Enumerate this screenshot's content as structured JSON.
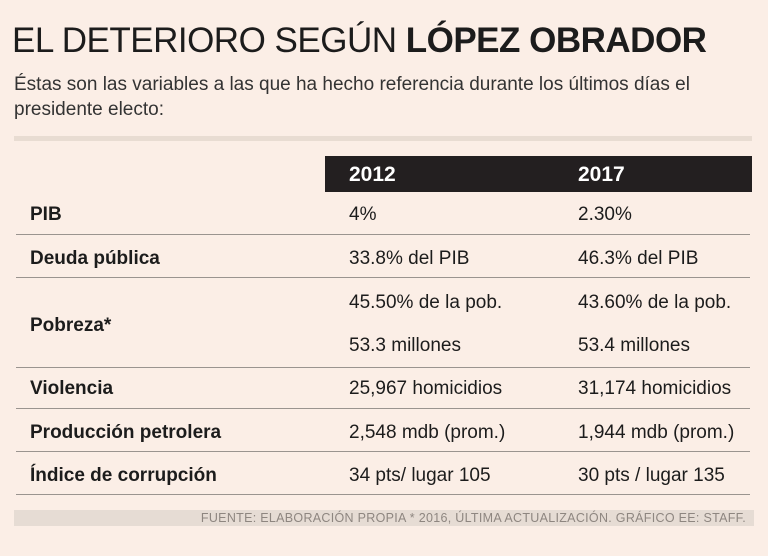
{
  "title": {
    "light": "EL DETERIORO SEGÚN ",
    "bold": "LÓPEZ OBRADOR"
  },
  "subtitle": "Éstas son las variables a las que ha hecho referencia durante los últimos días el presidente electo:",
  "table": {
    "headers": [
      "2012",
      "2017"
    ],
    "rows": [
      {
        "label": "PIB",
        "values": [
          "4%",
          "2.30%"
        ]
      },
      {
        "label": "Deuda pública",
        "values": [
          "33.8% del PIB",
          "46.3% del PIB"
        ]
      },
      {
        "label": "Pobreza*",
        "values": [
          "45.50% de la pob.",
          "43.60% de la pob."
        ],
        "values2": [
          "53.3 millones",
          "53.4 millones"
        ]
      },
      {
        "label": "Violencia",
        "values": [
          "25,967 homicidios",
          "31,174 homicidios"
        ]
      },
      {
        "label": "Producción petrolera",
        "values": [
          "2,548 mdb (prom.)",
          "1,944 mdb (prom.)"
        ]
      },
      {
        "label": "Índice de corrupción",
        "values": [
          "34 pts/ lugar 105",
          "30 pts / lugar 135"
        ]
      }
    ]
  },
  "source": "FUENTE: ELABORACIÓN PROPIA * 2016, ÚLTIMA ACTUALIZACIÓN. GRÁFICO EE: STAFF."
}
